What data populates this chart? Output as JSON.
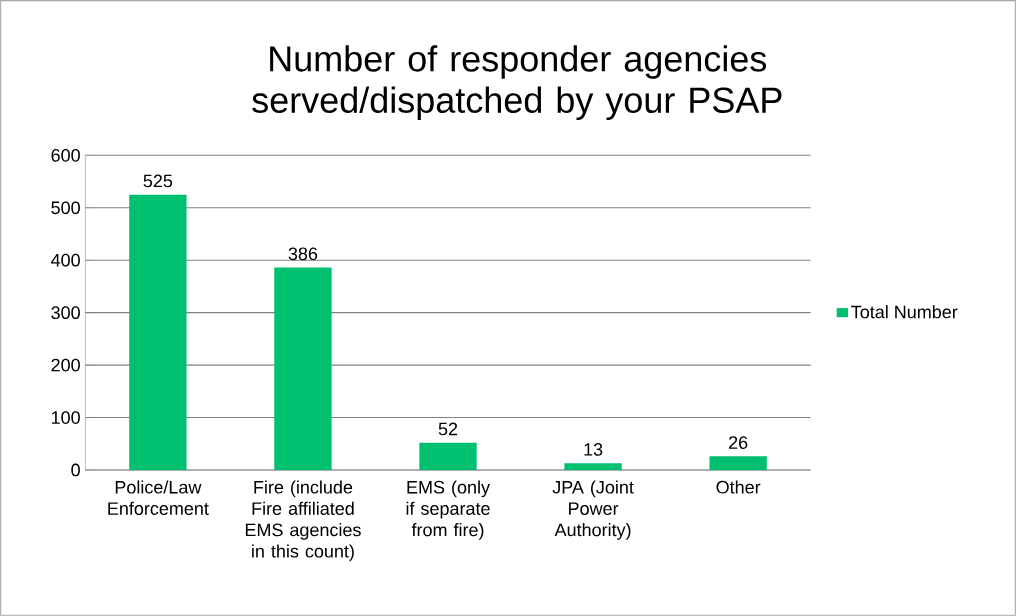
{
  "chart_data": {
    "type": "bar",
    "title": "Number of responder agencies served/dispatched by your PSAP",
    "categories": [
      "Police/Law Enforcement",
      "Fire (include Fire affiliated EMS agencies in this count)",
      "EMS (only if separate from fire)",
      "JPA (Joint Power Authority)",
      "Other"
    ],
    "series": [
      {
        "name": "Total Number",
        "color": "#00bf6f",
        "values": [
          525,
          386,
          52,
          13,
          26
        ]
      }
    ],
    "ylim": [
      0,
      600
    ],
    "yticks": [
      0,
      100,
      200,
      300,
      400,
      500,
      600
    ],
    "grid": "y",
    "legend": "right",
    "data_labels": true
  }
}
